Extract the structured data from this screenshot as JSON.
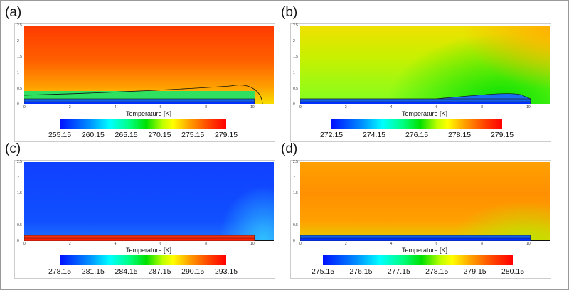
{
  "chart_data": [
    {
      "type": "heatmap",
      "label": "(a)",
      "xlabel": "Temperature [K]",
      "xticks": [
        "0",
        "2",
        "4",
        "6",
        "8",
        "10"
      ],
      "yticks": [
        "0",
        "0.5",
        "1",
        "1.5",
        "2",
        "2.5"
      ],
      "xlim": [
        0,
        11
      ],
      "ylim": [
        0,
        2.5
      ],
      "colorbar": {
        "ticks": [
          "255.15",
          "260.15",
          "265.15",
          "270.15",
          "275.15",
          "279.15"
        ],
        "range": [
          255.15,
          279.15
        ]
      }
    },
    {
      "type": "heatmap",
      "label": "(b)",
      "xlabel": "Temperature [K]",
      "xticks": [
        "0",
        "2",
        "4",
        "6",
        "8",
        "10"
      ],
      "yticks": [
        "0",
        "0.5",
        "1",
        "1.5",
        "2",
        "2.5"
      ],
      "xlim": [
        0,
        11
      ],
      "ylim": [
        0,
        2.5
      ],
      "colorbar": {
        "ticks": [
          "272.15",
          "274.15",
          "276.15",
          "278.15",
          "279.15"
        ],
        "range": [
          272.15,
          279.15
        ]
      }
    },
    {
      "type": "heatmap",
      "label": "(c)",
      "xlabel": "Temperature [K]",
      "xticks": [
        "0",
        "2",
        "4",
        "6",
        "8",
        "10"
      ],
      "yticks": [
        "0",
        "0.5",
        "1",
        "1.5",
        "2",
        "2.5"
      ],
      "xlim": [
        0,
        11
      ],
      "ylim": [
        0,
        2.5
      ],
      "colorbar": {
        "ticks": [
          "278.15",
          "281.15",
          "284.15",
          "287.15",
          "290.15",
          "293.15"
        ],
        "range": [
          278.15,
          293.15
        ]
      }
    },
    {
      "type": "heatmap",
      "label": "(d)",
      "xlabel": "Temperature [K]",
      "xticks": [
        "0",
        "2",
        "4",
        "6",
        "8",
        "10"
      ],
      "yticks": [
        "0",
        "0.5",
        "1",
        "1.5",
        "2",
        "2.5"
      ],
      "xlim": [
        0,
        11
      ],
      "ylim": [
        0,
        2.5
      ],
      "colorbar": {
        "ticks": [
          "275.15",
          "276.15",
          "277.15",
          "278.15",
          "279.15",
          "280.15"
        ],
        "range": [
          275.15,
          280.15
        ]
      }
    }
  ],
  "colors": {
    "jet": [
      "#0000ff",
      "#00ffff",
      "#00ff00",
      "#ffff00",
      "#ff8000",
      "#ff0000"
    ]
  }
}
